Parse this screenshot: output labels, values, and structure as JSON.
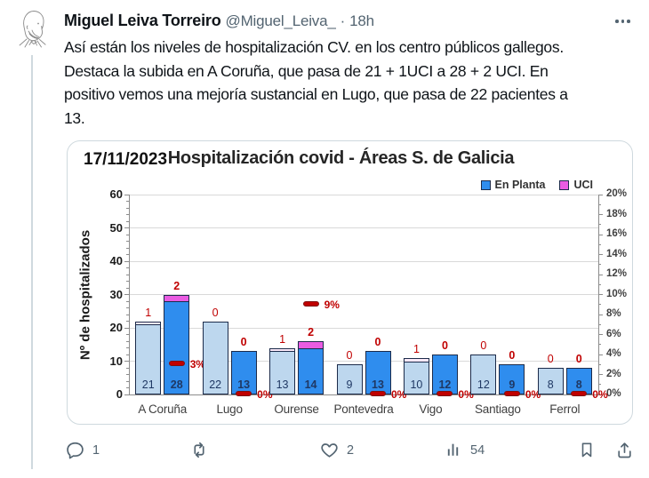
{
  "tweet": {
    "author": "Miguel Leiva Torreiro",
    "handle": "@Miguel_Leiva_",
    "separator": "·",
    "time": "18h",
    "body_lines": [
      "Así están los niveles de hospitalización CV. en los centro públicos gallegos.",
      "Destaca la subida en A Coruña, que pasa de 21 + 1UCI a 28 + 2 UCI. En",
      "positivo vemos una mejoría sustancial en Lugo, que pasa de 22 pacientes a",
      "13."
    ],
    "actions": {
      "reply_count": "1",
      "retweet_count": "",
      "like_count": "2",
      "view_count": "54"
    }
  },
  "chart_data": {
    "type": "bar",
    "date_label": "17/11/2023",
    "title": "Hospitalización covid - Áreas S. de Galicia",
    "ylabel": "Nº de hospitalizados",
    "ylim": [
      0,
      60
    ],
    "yticks": [
      0,
      10,
      20,
      30,
      40,
      50,
      60
    ],
    "y2lim_pct": [
      0,
      20
    ],
    "y2ticks": [
      "0%",
      "2%",
      "4%",
      "6%",
      "8%",
      "10%",
      "12%",
      "14%",
      "16%",
      "18%",
      "20%"
    ],
    "grid": "horizontal, every 10 units",
    "legend_position": "top-right",
    "legend": [
      {
        "label": "En Planta",
        "color": "#2f8dee"
      },
      {
        "label": "UCI",
        "color": "#ea5ce2"
      }
    ],
    "categories": [
      "A Coruña",
      "Lugo",
      "Ourense",
      "Pontevedra",
      "Vigo",
      "Santiago",
      "Ferrol"
    ],
    "groups": [
      {
        "category": "A Coruña",
        "prev": {
          "planta": 21,
          "uci": 1,
          "label": "21",
          "uci_label": "1"
        },
        "curr": {
          "planta": 28,
          "uci": 2,
          "label": "28",
          "uci_label": "2"
        },
        "uci_pct": {
          "value": 3,
          "label": "3%"
        }
      },
      {
        "category": "Lugo",
        "prev": {
          "planta": 22,
          "uci": 0,
          "label": "22",
          "uci_label": "0"
        },
        "curr": {
          "planta": 13,
          "uci": 0,
          "label": "13",
          "uci_label": "0"
        },
        "uci_pct": {
          "value": 0,
          "label": "0%"
        }
      },
      {
        "category": "Ourense",
        "prev": {
          "planta": 13,
          "uci": 1,
          "label": "13",
          "uci_label": "1"
        },
        "curr": {
          "planta": 14,
          "uci": 2,
          "label": "14",
          "uci_label": "2"
        },
        "uci_pct": {
          "value": 9,
          "label": "9%"
        }
      },
      {
        "category": "Pontevedra",
        "prev": {
          "planta": 9,
          "uci": 0,
          "label": "9",
          "uci_label": "0"
        },
        "curr": {
          "planta": 13,
          "uci": 0,
          "label": "13",
          "uci_label": "0"
        },
        "uci_pct": {
          "value": 0,
          "label": "0%"
        }
      },
      {
        "category": "Vigo",
        "prev": {
          "planta": 10,
          "uci": 1,
          "label": "10",
          "uci_label": "1"
        },
        "curr": {
          "planta": 12,
          "uci": 0,
          "label": "12",
          "uci_label": "0"
        },
        "uci_pct": {
          "value": 0,
          "label": "0%"
        }
      },
      {
        "category": "Santiago",
        "prev": {
          "planta": 12,
          "uci": 0,
          "label": "12",
          "uci_label": "0"
        },
        "curr": {
          "planta": 9,
          "uci": 0,
          "label": "9",
          "uci_label": "0"
        },
        "uci_pct": {
          "value": 0,
          "label": "0%"
        }
      },
      {
        "category": "Ferrol",
        "prev": {
          "planta": 8,
          "uci": 0,
          "label": "8",
          "uci_label": "0"
        },
        "curr": {
          "planta": 8,
          "uci": 0,
          "label": "8",
          "uci_label": "0"
        },
        "uci_pct": {
          "value": 0,
          "label": "0%"
        }
      }
    ],
    "colors": {
      "prev_bar": "#bdd7ee",
      "curr_bar": "#2f8dee",
      "uci": "#ea5ce2",
      "uci_prev": "#fbe9f9",
      "bar_border": "#1c2b4a",
      "marker_red": "#c00000"
    }
  }
}
